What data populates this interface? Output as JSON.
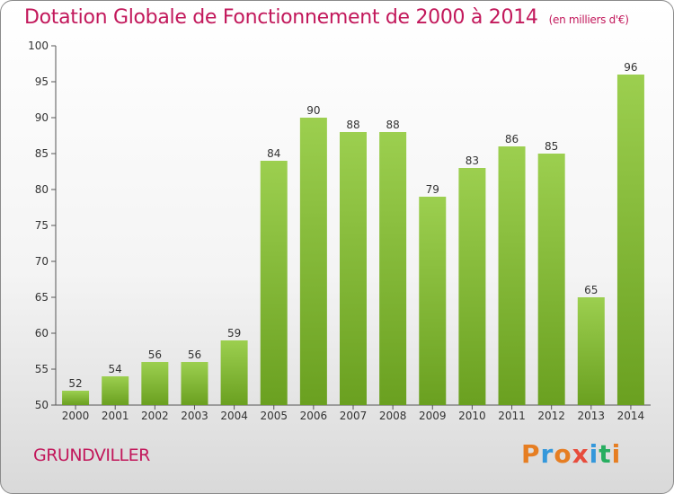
{
  "title": "Dotation Globale de Fonctionnement de 2000 à 2014",
  "unit": "(en milliers d'€)",
  "commune": "GRUNDVILLER",
  "logo": {
    "letters": [
      "P",
      "r",
      "o",
      "x",
      "i",
      "t",
      "i"
    ],
    "colors": [
      "#e67e22",
      "#3498db",
      "#e67e22",
      "#e74c3c",
      "#3498db",
      "#27ae60",
      "#e67e22"
    ]
  },
  "colors": {
    "bar_top": "#9ccf4f",
    "bar_bottom": "#6aa020",
    "title": "#c2185b"
  },
  "chart_data": {
    "type": "bar",
    "categories": [
      "2000",
      "2001",
      "2002",
      "2003",
      "2004",
      "2005",
      "2006",
      "2007",
      "2008",
      "2009",
      "2010",
      "2011",
      "2012",
      "2013",
      "2014"
    ],
    "values": [
      52,
      54,
      56,
      56,
      59,
      84,
      90,
      88,
      88,
      79,
      83,
      86,
      85,
      65,
      96
    ],
    "ylim": [
      50,
      100
    ],
    "yticks": [
      50,
      55,
      60,
      65,
      70,
      75,
      80,
      85,
      90,
      95,
      100
    ],
    "grid": false,
    "xlabel": "",
    "ylabel": ""
  }
}
